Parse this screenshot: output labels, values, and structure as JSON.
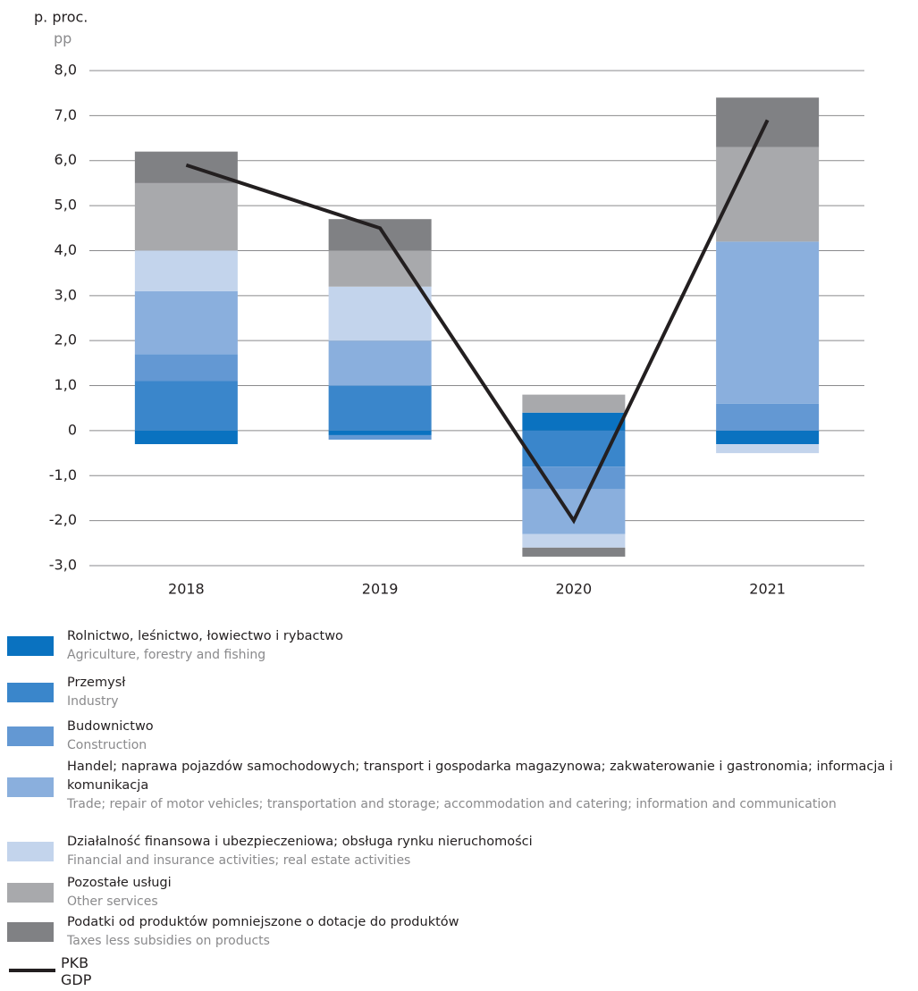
{
  "chart_data": {
    "type": "stacked_bar_line",
    "y_label": "p. proc.",
    "y_label_en": "pp",
    "categories": [
      "2018",
      "2019",
      "2020",
      "2021"
    ],
    "ylim": [
      -3,
      8
    ],
    "yticks": [
      {
        "value": -3,
        "label": "-3,0"
      },
      {
        "value": -2,
        "label": "-2,0"
      },
      {
        "value": -1,
        "label": "-1,0"
      },
      0,
      {
        "value": 1,
        "label": "1,0"
      },
      {
        "value": 2,
        "label": "2,0"
      },
      {
        "value": 3,
        "label": "3,0"
      },
      {
        "value": 4,
        "label": "4,0"
      },
      {
        "value": 5,
        "label": "5,0"
      },
      {
        "value": 6,
        "label": "6,0"
      },
      {
        "value": 7,
        "label": "7,0"
      },
      {
        "value": 8,
        "label": "8,0"
      }
    ],
    "grid": true,
    "series": [
      {
        "name": "Rolnictwo, leśnictwo, łowiectwo i rybactwo",
        "name_en": "Agriculture, forestry and fishing",
        "color": "#0a72c0",
        "values": [
          -0.3,
          -0.1,
          0.4,
          -0.3
        ]
      },
      {
        "name": "Przemysł",
        "name_en": "Industry",
        "color": "#3a86cb",
        "values": [
          1.1,
          1.0,
          -0.8,
          0
        ]
      },
      {
        "name": "Budownictwo",
        "name_en": "Construction",
        "color": "#6398d3",
        "values": [
          0.6,
          -0.1,
          -0.5,
          0.6
        ]
      },
      {
        "name": "Handel; naprawa pojazdów samochodowych; transport i gospodarka magazynowa; zakwaterowanie i gastronomia; informacja i komunikacja",
        "name_en": "Trade; repair of motor vehicles; transportation and storage; accommodation and catering; information and communication",
        "color": "#8aafdd",
        "values": [
          1.4,
          1.0,
          -1.0,
          3.6
        ]
      },
      {
        "name": "Działalność finansowa i ubezpieczeniowa; obsługa rynku nieruchomości",
        "name_en": "Financial and insurance activities; real estate activities",
        "color": "#c3d4ec",
        "values": [
          0.9,
          1.2,
          -0.3,
          -0.2
        ]
      },
      {
        "name": "Pozostałe usługi",
        "name_en": "Other services",
        "color": "#a8a9ac",
        "values": [
          1.5,
          0.8,
          0.4,
          2.1
        ]
      },
      {
        "name": "Podatki od produktów pomniejszone o dotacje do produktów",
        "name_en": "Taxes less subsidies on products",
        "color": "#808184",
        "values": [
          0.7,
          0.7,
          -0.2,
          1.1
        ]
      }
    ],
    "line": {
      "name": "PKB",
      "name_en": "GDP",
      "color": "#231f20",
      "values": [
        5.9,
        4.5,
        -2.0,
        6.9
      ]
    }
  }
}
